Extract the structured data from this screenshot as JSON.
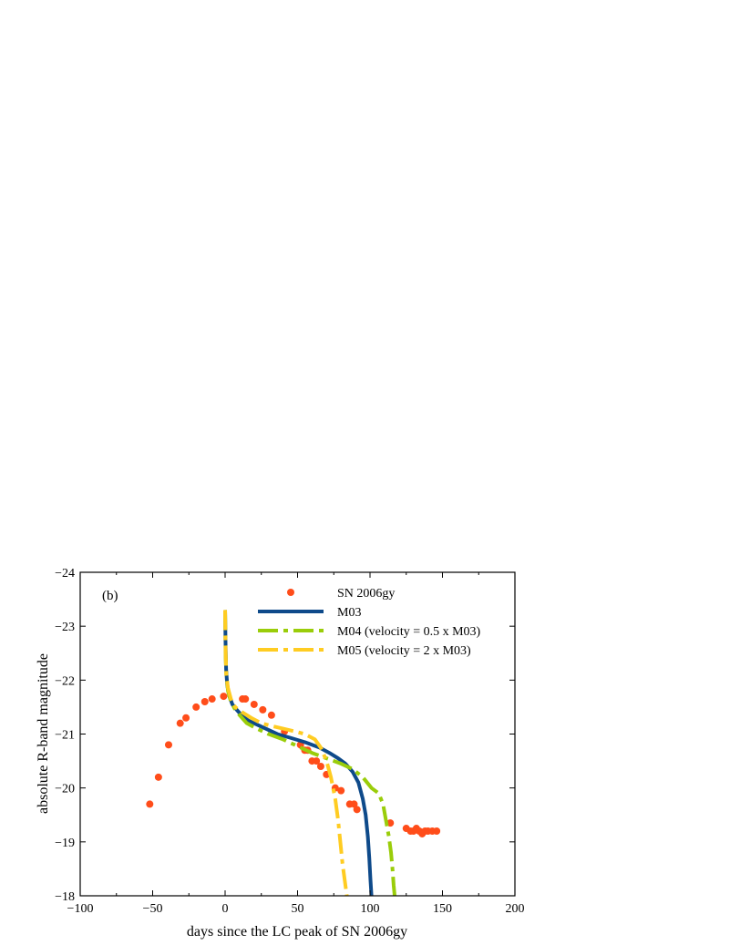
{
  "chart_data": {
    "type": "line",
    "panel_label": "(b)",
    "xlabel": "days since the LC peak of SN 2006gy",
    "ylabel": "absolute R-band magnitude",
    "xlim": [
      -100,
      200
    ],
    "ylim": [
      -18,
      -24
    ],
    "y_inverted": true,
    "x_ticks": [
      -100,
      -50,
      0,
      50,
      100,
      150,
      200
    ],
    "x_tick_labels": [
      "−100",
      "−50",
      "0",
      "50",
      "100",
      "150",
      "200"
    ],
    "y_ticks": [
      -24,
      -23,
      -22,
      -21,
      -20,
      -19,
      -18
    ],
    "y_tick_labels": [
      "−24",
      "−23",
      "−22",
      "−21",
      "−20",
      "−19",
      "−18"
    ],
    "grid": false,
    "legend_position": "top-center",
    "series": [
      {
        "name": "SN 2006gy",
        "kind": "scatter",
        "color": "#ff4d1a",
        "x": [
          -52,
          -46,
          -39,
          -31,
          -27,
          -20,
          -14,
          -9,
          -1,
          12,
          14,
          20,
          26,
          32,
          41,
          52,
          55,
          57,
          60,
          63,
          66,
          70,
          76,
          80,
          86,
          89,
          91,
          114,
          125,
          128,
          130,
          132,
          134,
          136,
          138,
          140,
          143,
          146
        ],
        "y": [
          -19.7,
          -20.2,
          -20.8,
          -21.2,
          -21.3,
          -21.5,
          -21.6,
          -21.65,
          -21.7,
          -21.65,
          -21.65,
          -21.55,
          -21.45,
          -21.35,
          -21.05,
          -20.8,
          -20.7,
          -20.7,
          -20.5,
          -20.5,
          -20.4,
          -20.25,
          -20.0,
          -19.95,
          -19.7,
          -19.7,
          -19.6,
          -19.35,
          -19.25,
          -19.2,
          -19.2,
          -19.25,
          -19.2,
          -19.15,
          -19.2,
          -19.2,
          -19.2,
          -19.2
        ]
      },
      {
        "name": "M03",
        "kind": "line",
        "style": "solid",
        "color": "#0e4a8a",
        "x": [
          0,
          0.3,
          0.7,
          1.5,
          3,
          5,
          8,
          12,
          16,
          20,
          28,
          36,
          45,
          55,
          65,
          72,
          78,
          83,
          88,
          92,
          95,
          97,
          98.5,
          99.5,
          100.3,
          101
        ],
        "y": [
          -23.3,
          -22.7,
          -22.2,
          -21.9,
          -21.7,
          -21.55,
          -21.45,
          -21.33,
          -21.25,
          -21.2,
          -21.1,
          -21.0,
          -20.93,
          -20.85,
          -20.75,
          -20.65,
          -20.55,
          -20.45,
          -20.3,
          -20.1,
          -19.8,
          -19.5,
          -19.1,
          -18.7,
          -18.3,
          -18.0
        ]
      },
      {
        "name": "M04 (velocity = 0.5 x M03)",
        "kind": "line",
        "style": "dash-dot",
        "color": "#9acd0a",
        "x": [
          0,
          0.3,
          0.8,
          2,
          4,
          7,
          10,
          15,
          22,
          30,
          40,
          52,
          60,
          70,
          80,
          88,
          95,
          101,
          106,
          109,
          111,
          113,
          114.5,
          115.5,
          116.3,
          117
        ],
        "y": [
          -23.3,
          -22.5,
          -22.1,
          -21.8,
          -21.6,
          -21.45,
          -21.35,
          -21.2,
          -21.1,
          -21.0,
          -20.9,
          -20.75,
          -20.65,
          -20.55,
          -20.45,
          -20.35,
          -20.2,
          -20.0,
          -19.9,
          -19.7,
          -19.4,
          -19.1,
          -18.8,
          -18.5,
          -18.2,
          -18.0
        ]
      },
      {
        "name": "M05 (velocity = 2 x M03)",
        "kind": "line",
        "style": "dash-dot",
        "color": "#ffcc22",
        "x": [
          0,
          0.3,
          0.8,
          2,
          4,
          7,
          12,
          18,
          25,
          32,
          40,
          48,
          55,
          62,
          66,
          70,
          73,
          76,
          78,
          79.5,
          81,
          82.5,
          84
        ],
        "y": [
          -23.3,
          -22.6,
          -22.1,
          -21.85,
          -21.65,
          -21.5,
          -21.4,
          -21.3,
          -21.2,
          -21.15,
          -21.1,
          -21.05,
          -21.0,
          -20.9,
          -20.75,
          -20.5,
          -20.2,
          -19.8,
          -19.4,
          -19.0,
          -18.6,
          -18.3,
          -18.0
        ]
      }
    ]
  }
}
